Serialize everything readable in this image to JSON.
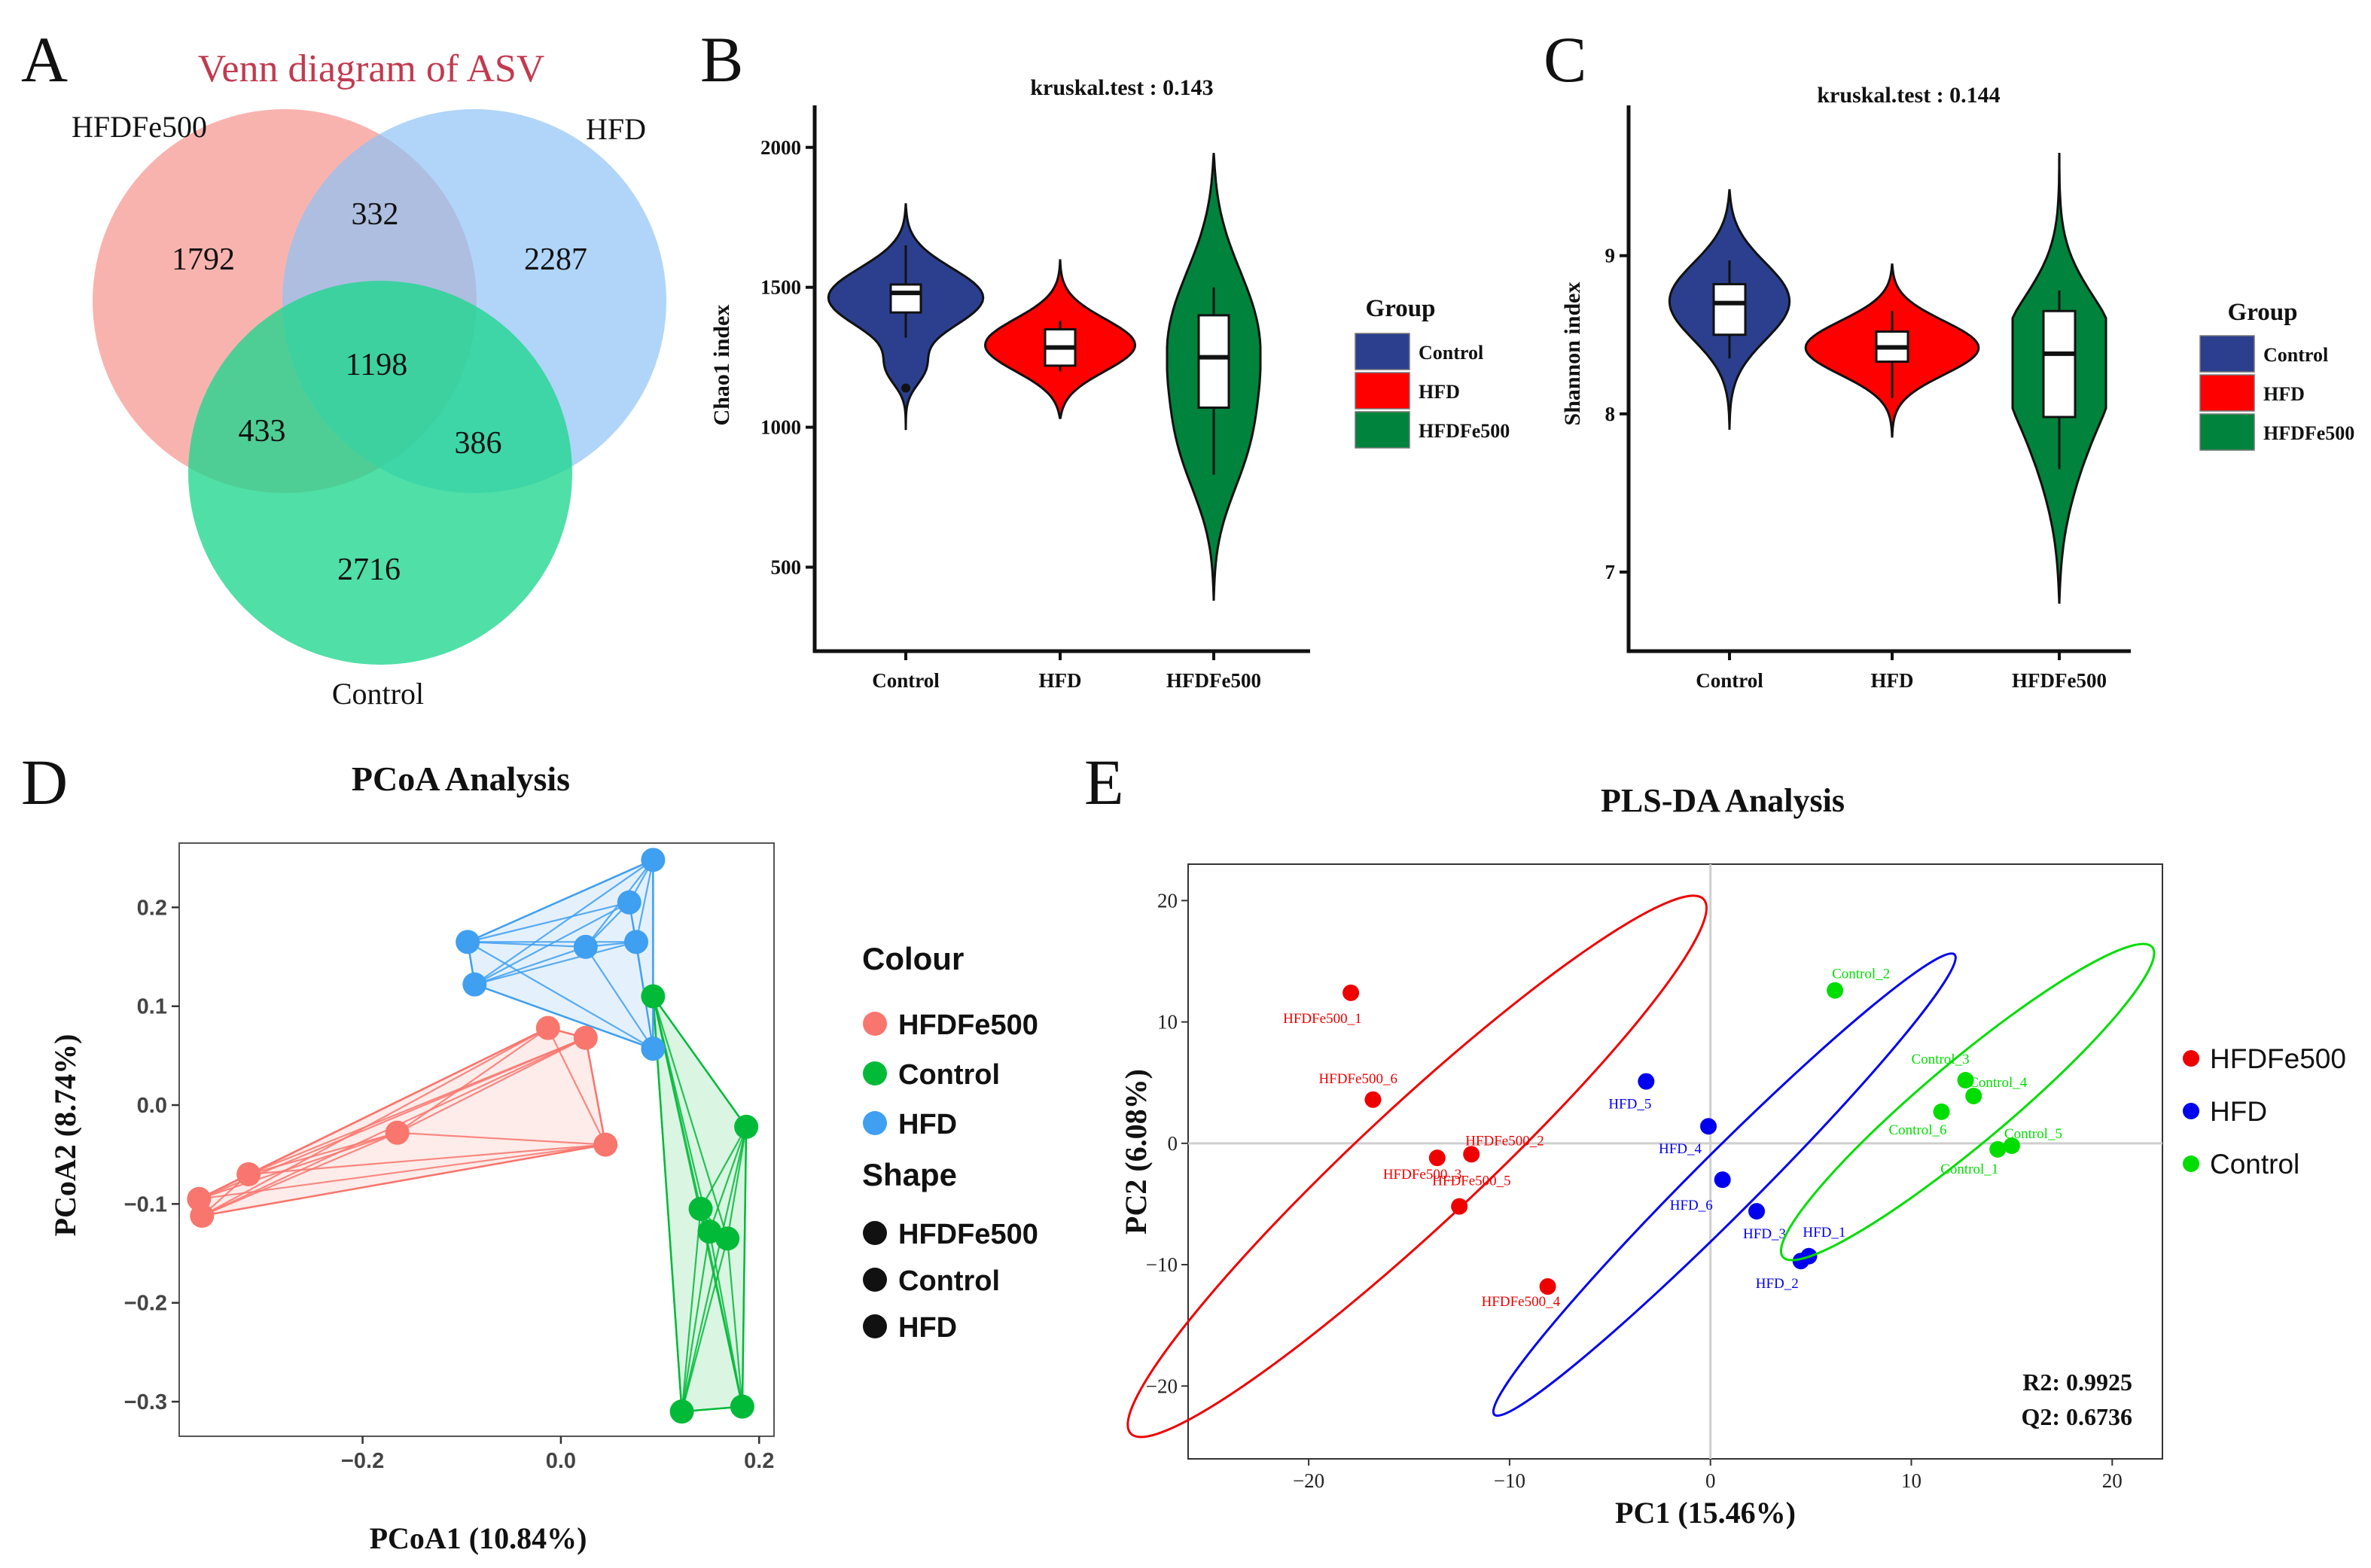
{
  "panel_labels": [
    "A",
    "B",
    "C",
    "D",
    "E"
  ],
  "chart_data": [
    {
      "type": "venn",
      "title": "Venn diagram of ASV",
      "sets": [
        {
          "name": "HFDFe500",
          "color": "#f7a09a"
        },
        {
          "name": "HFD",
          "color": "#8ec3f5"
        },
        {
          "name": "Control",
          "color": "#1ed68e"
        }
      ],
      "regions": [
        {
          "id": "hfdfe500_only",
          "value": "1792"
        },
        {
          "id": "hfd_only",
          "value": "2287"
        },
        {
          "id": "control_only",
          "value": "2716"
        },
        {
          "id": "hfdfe500_hfd",
          "value": "332"
        },
        {
          "id": "hfdfe500_control",
          "value": "433"
        },
        {
          "id": "hfd_control",
          "value": "386"
        },
        {
          "id": "all",
          "value": "1198"
        }
      ]
    },
    {
      "type": "violin",
      "title": "kruskal.test : 0.143",
      "ylabel": "Chao1 index",
      "ylim": [
        200,
        2150
      ],
      "yticks": [
        500,
        1000,
        1500,
        2000
      ],
      "categories": [
        "Control",
        "HFD",
        "HFDFe500"
      ],
      "legend_title": "Group",
      "series": [
        {
          "name": "Control",
          "color": "#2b3f8e",
          "box": {
            "min": 1320,
            "q1": 1410,
            "median": 1480,
            "q3": 1510,
            "max": 1650
          },
          "outliers": [
            1140
          ],
          "range": [
            990,
            1800
          ]
        },
        {
          "name": "HFD",
          "color": "#ff0000",
          "box": {
            "min": 1200,
            "q1": 1220,
            "median": 1285,
            "q3": 1350,
            "max": 1380
          },
          "outliers": [],
          "range": [
            1030,
            1600
          ]
        },
        {
          "name": "HFDFe500",
          "color": "#00833c",
          "box": {
            "min": 830,
            "q1": 1070,
            "median": 1250,
            "q3": 1400,
            "max": 1500
          },
          "outliers": [],
          "range": [
            380,
            1980
          ]
        }
      ]
    },
    {
      "type": "violin",
      "title": "kruskal.test : 0.144",
      "ylabel": "Shannon index",
      "ylim": [
        6.5,
        9.95
      ],
      "yticks": [
        7,
        8,
        9
      ],
      "categories": [
        "Control",
        "HFD",
        "HFDFe500"
      ],
      "legend_title": "Group",
      "series": [
        {
          "name": "Control",
          "color": "#2b3f8e",
          "box": {
            "min": 8.35,
            "q1": 8.5,
            "median": 8.7,
            "q3": 8.82,
            "max": 8.97
          },
          "outliers": [],
          "range": [
            7.9,
            9.42
          ]
        },
        {
          "name": "HFD",
          "color": "#ff0000",
          "box": {
            "min": 8.1,
            "q1": 8.33,
            "median": 8.42,
            "q3": 8.52,
            "max": 8.65
          },
          "outliers": [],
          "range": [
            7.85,
            8.95
          ]
        },
        {
          "name": "HFDFe500",
          "color": "#00833c",
          "box": {
            "min": 7.65,
            "q1": 7.98,
            "median": 8.38,
            "q3": 8.65,
            "max": 8.78
          },
          "outliers": [],
          "range": [
            6.8,
            9.65
          ]
        }
      ]
    },
    {
      "type": "scatter",
      "title": "PCoA Analysis",
      "xlabel": "PCoA1 (10.84%)",
      "ylabel": "PCoA2 (8.74%)",
      "xlim": [
        -0.385,
        0.215
      ],
      "ylim": [
        -0.335,
        0.265
      ],
      "xticks": [
        -0.2,
        0.0,
        0.2
      ],
      "xtick_labels": [
        "−0.2",
        "0.0",
        "0.2"
      ],
      "yticks": [
        -0.3,
        -0.2,
        -0.1,
        0.0,
        0.1,
        0.2
      ],
      "ytick_labels": [
        "−0.3",
        "−0.2",
        "−0.1",
        "0.0",
        "0.1",
        "0.2"
      ],
      "legend": {
        "colour_title": "Colour",
        "shape_title": "Shape",
        "items": [
          "HFDFe500",
          "Control",
          "HFD"
        ]
      },
      "series": [
        {
          "name": "HFDFe500",
          "color": "#f8766d",
          "points": [
            [
              -0.365,
              -0.095
            ],
            [
              -0.362,
              -0.112
            ],
            [
              -0.315,
              -0.07
            ],
            [
              -0.165,
              -0.028
            ],
            [
              -0.013,
              0.078
            ],
            [
              0.025,
              0.068
            ],
            [
              0.045,
              -0.04
            ]
          ]
        },
        {
          "name": "Control",
          "color": "#00ba38",
          "points": [
            [
              0.093,
              0.11
            ],
            [
              0.187,
              -0.022
            ],
            [
              0.141,
              -0.105
            ],
            [
              0.15,
              -0.128
            ],
            [
              0.168,
              -0.135
            ],
            [
              0.122,
              -0.31
            ],
            [
              0.183,
              -0.305
            ]
          ]
        },
        {
          "name": "HFD",
          "color": "#3f9ff0",
          "points": [
            [
              0.093,
              0.248
            ],
            [
              0.069,
              0.205
            ],
            [
              0.076,
              0.165
            ],
            [
              0.025,
              0.16
            ],
            [
              -0.094,
              0.165
            ],
            [
              -0.087,
              0.122
            ],
            [
              0.093,
              0.057
            ]
          ]
        }
      ]
    },
    {
      "type": "scatter",
      "title": "PLS-DA Analysis",
      "xlabel": "PC1 (15.46%)",
      "ylabel": "PC2 (6.08%)",
      "xlim": [
        -26,
        22.5
      ],
      "ylim": [
        -26,
        23
      ],
      "xticks": [
        -20,
        -10,
        0,
        10,
        20
      ],
      "xtick_labels": [
        "−20",
        "−10",
        "0",
        "10",
        "20"
      ],
      "yticks": [
        -20,
        -10,
        0,
        10,
        20
      ],
      "ytick_labels": [
        "−20",
        "−10",
        "0",
        "10",
        "20"
      ],
      "annotations": [
        "R2: 0.9925",
        "Q2: 0.6736"
      ],
      "legend_items": [
        "HFDFe500",
        "HFD",
        "Control"
      ],
      "series": [
        {
          "name": "HFDFe500",
          "color": "#ee0000",
          "points": [
            {
              "x": -17.9,
              "y": 12.4,
              "label": "HFDFe500_1"
            },
            {
              "x": -16.8,
              "y": 3.6,
              "label": "HFDFe500_6"
            },
            {
              "x": -11.9,
              "y": -0.9,
              "label": "HFDFe500_2"
            },
            {
              "x": -13.6,
              "y": -1.2,
              "label": "HFDFe500_3"
            },
            {
              "x": -12.5,
              "y": -5.2,
              "label": "HFDFe500_5"
            },
            {
              "x": -8.1,
              "y": -11.8,
              "label": "HFDFe500_4"
            }
          ],
          "ellipse": {
            "cx": -14.6,
            "cy": -1.9,
            "rx": 19.5,
            "ry": 4.9,
            "angle": -43
          }
        },
        {
          "name": "HFD",
          "color": "#0000ee",
          "points": [
            {
              "x": -3.2,
              "y": 5.1,
              "label": "HFD_5"
            },
            {
              "x": -0.1,
              "y": 1.4,
              "label": "HFD_4"
            },
            {
              "x": 0.6,
              "y": -3.0,
              "label": "HFD_6"
            },
            {
              "x": 2.3,
              "y": -5.6,
              "label": "HFD_3"
            },
            {
              "x": 4.9,
              "y": -9.3,
              "label": "HFD_1"
            },
            {
              "x": 4.5,
              "y": -9.7,
              "label": "HFD_2"
            }
          ],
          "ellipse": {
            "cx": 0.7,
            "cy": -3.4,
            "rx": 16.2,
            "ry": 2.55,
            "angle": -45
          }
        },
        {
          "name": "Control",
          "color": "#00dd00",
          "points": [
            {
              "x": 6.2,
              "y": 12.6,
              "label": "Control_2"
            },
            {
              "x": 12.7,
              "y": 5.2,
              "label": "Control_3"
            },
            {
              "x": 13.1,
              "y": 3.9,
              "label": "Control_4"
            },
            {
              "x": 11.5,
              "y": 2.6,
              "label": "Control_6"
            },
            {
              "x": 15.0,
              "y": -0.2,
              "label": "Control_5"
            },
            {
              "x": 14.3,
              "y": -0.5,
              "label": "Control_1"
            }
          ],
          "ellipse": {
            "cx": 12.8,
            "cy": 3.4,
            "rx": 12.0,
            "ry": 3.4,
            "angle": -40
          }
        }
      ]
    }
  ]
}
